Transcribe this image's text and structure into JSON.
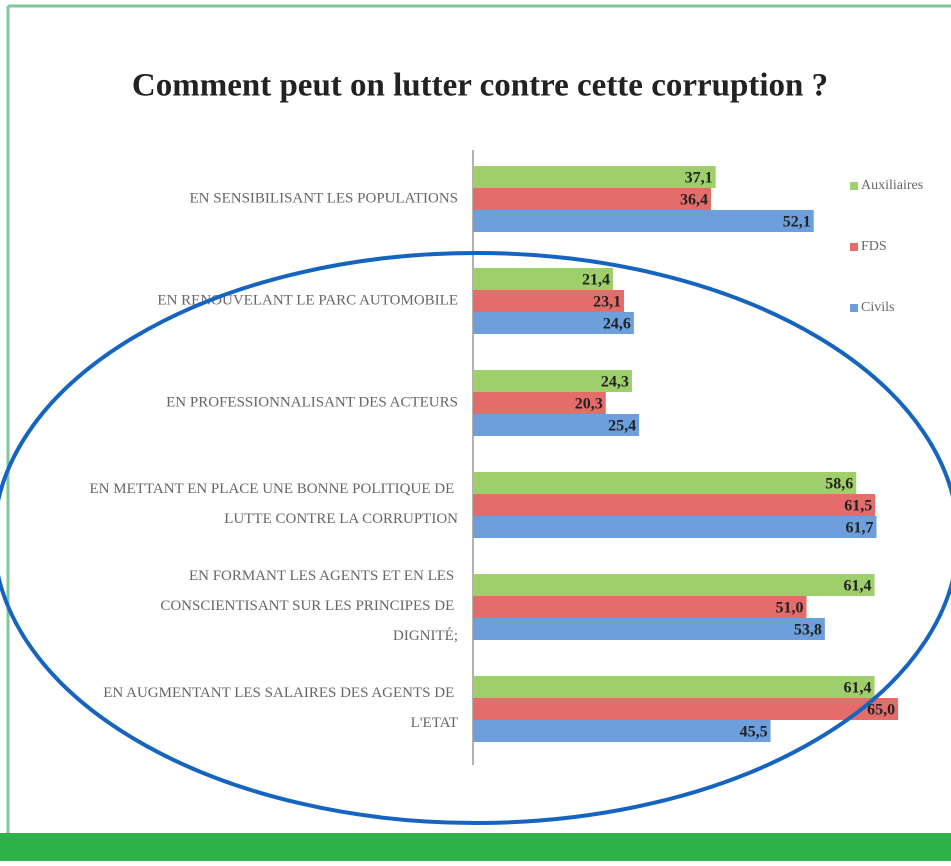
{
  "chart_data": {
    "type": "bar",
    "orientation": "horizontal",
    "title": "Comment peut on lutter contre cette corruption ?",
    "categories": [
      "EN SENSIBILISANT LES POPULATIONS",
      "EN RENOUVELANT LE PARC AUTOMOBILE",
      "EN PROFESSIONNALISANT DES ACTEURS",
      "EN METTANT EN PLACE UNE BONNE POLITIQUE DE LUTTE CONTRE LA CORRUPTION",
      "EN FORMANT LES AGENTS ET EN LES CONSCIENTISANT SUR LES PRINCIPES DE DIGNITÉ;",
      "EN AUGMENTANT LES SALAIRES DES AGENTS DE L'ETAT"
    ],
    "series": [
      {
        "name": "Auxiliaires",
        "color": "#9fcf6a",
        "values": [
          37.1,
          21.4,
          24.3,
          58.6,
          61.4,
          61.4
        ],
        "value_labels": [
          "37,1",
          "21,4",
          "24,3",
          "58,6",
          "61,4",
          "61,4"
        ]
      },
      {
        "name": "FDS",
        "color": "#e46c6a",
        "values": [
          36.4,
          23.1,
          20.3,
          61.5,
          51.0,
          65.0
        ],
        "value_labels": [
          "36,4",
          "23,1",
          "20,3",
          "61,5",
          "51,0",
          "65,0"
        ]
      },
      {
        "name": "Civils",
        "color": "#6d9fdc",
        "values": [
          52.1,
          24.6,
          25.4,
          61.7,
          53.8,
          45.5
        ],
        "value_labels": [
          "52,1",
          "24,6",
          "25,4",
          "61,7",
          "53,8",
          "45,5"
        ]
      }
    ],
    "legend": "top-right"
  }
}
